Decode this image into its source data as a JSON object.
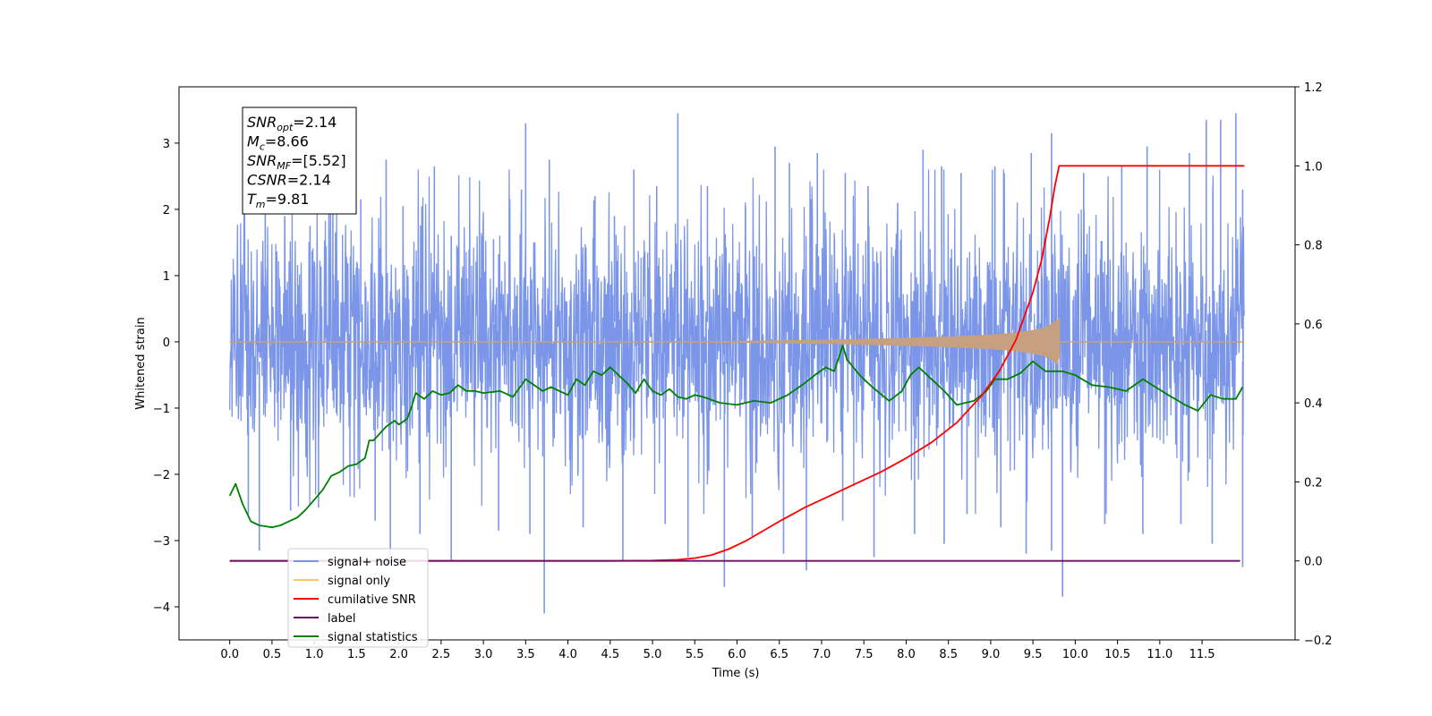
{
  "chart_data": {
    "type": "line",
    "title": "",
    "xlabel": "Time (s)",
    "ylabel_left": "Whitened strain",
    "ylabel_right": "",
    "xlim": [
      -0.6,
      12.6
    ],
    "ylim_left": [
      -4.5,
      3.85
    ],
    "ylim_right": [
      -0.2,
      1.2
    ],
    "xticks": [
      "0.0",
      "0.5",
      "1.0",
      "1.5",
      "2.0",
      "2.5",
      "3.0",
      "3.5",
      "4.0",
      "4.5",
      "5.0",
      "5.5",
      "6.0",
      "6.5",
      "7.0",
      "7.5",
      "8.0",
      "8.5",
      "9.0",
      "9.5",
      "10.0",
      "10.5",
      "11.0",
      "11.5"
    ],
    "yticks_left": [
      "3",
      "2",
      "1",
      "0",
      "−1",
      "−2",
      "−3",
      "−4"
    ],
    "yticks_right": [
      "1.2",
      "1.0",
      "0.8",
      "0.6",
      "0.4",
      "0.2",
      "0.0",
      "−0.2"
    ],
    "grid": false,
    "legend_position": "lower-left",
    "series": [
      {
        "name": "signal+ noise",
        "axis": "left",
        "color": "#7b96e8",
        "spikes": [
          [
            0.42,
            3.05
          ],
          [
            0.65,
            1.9
          ],
          [
            0.95,
            1.75
          ],
          [
            1.22,
            2.05
          ],
          [
            1.55,
            2.15
          ],
          [
            1.85,
            2.75
          ],
          [
            2.05,
            2.05
          ],
          [
            2.42,
            2.65
          ],
          [
            2.62,
            1.6
          ],
          [
            3.12,
            1.55
          ],
          [
            3.45,
            2.3
          ],
          [
            3.5,
            3.3
          ],
          [
            3.78,
            2.75
          ],
          [
            4.32,
            2.2
          ],
          [
            4.55,
            1.9
          ],
          [
            4.78,
            2.6
          ],
          [
            5.05,
            2.35
          ],
          [
            5.3,
            3.45
          ],
          [
            5.65,
            2.35
          ],
          [
            6.1,
            2.05
          ],
          [
            6.45,
            2.95
          ],
          [
            6.62,
            2.7
          ],
          [
            6.95,
            2.85
          ],
          [
            7.28,
            2.55
          ],
          [
            7.55,
            2.35
          ],
          [
            7.9,
            2.1
          ],
          [
            8.2,
            2.9
          ],
          [
            8.42,
            2.65
          ],
          [
            8.65,
            2.55
          ],
          [
            9.05,
            2.65
          ],
          [
            9.48,
            2.85
          ],
          [
            9.72,
            3.15
          ],
          [
            10.1,
            2.55
          ],
          [
            10.55,
            2.65
          ],
          [
            10.85,
            2.95
          ],
          [
            11.35,
            2.85
          ],
          [
            11.55,
            3.35
          ],
          [
            11.72,
            3.35
          ],
          [
            11.9,
            3.45
          ],
          [
            11.98,
            2.3
          ]
        ],
        "dips": [
          [
            0.22,
            -2.6
          ],
          [
            0.35,
            -3.15
          ],
          [
            0.72,
            -2.55
          ],
          [
            1.05,
            -2.5
          ],
          [
            1.72,
            -2.7
          ],
          [
            1.9,
            -3.35
          ],
          [
            2.25,
            -2.9
          ],
          [
            2.62,
            -3.3
          ],
          [
            3.18,
            -2.85
          ],
          [
            3.55,
            -2.9
          ],
          [
            3.72,
            -4.1
          ],
          [
            4.18,
            -2.8
          ],
          [
            4.65,
            -3.3
          ],
          [
            5.15,
            -2.75
          ],
          [
            5.42,
            -3.25
          ],
          [
            5.85,
            -3.7
          ],
          [
            6.18,
            -2.95
          ],
          [
            6.55,
            -3.2
          ],
          [
            6.82,
            -3.45
          ],
          [
            7.25,
            -2.7
          ],
          [
            7.62,
            -3.25
          ],
          [
            8.1,
            -2.9
          ],
          [
            8.45,
            -3.05
          ],
          [
            8.72,
            -2.6
          ],
          [
            9.12,
            -2.8
          ],
          [
            9.42,
            -3.2
          ],
          [
            9.72,
            -3.15
          ],
          [
            9.85,
            -3.85
          ],
          [
            10.35,
            -2.75
          ],
          [
            10.8,
            -2.9
          ],
          [
            11.25,
            -2.75
          ],
          [
            11.62,
            -3.05
          ],
          [
            11.98,
            -3.4
          ]
        ]
      },
      {
        "name": "signal only",
        "axis": "left",
        "color": "#c6a080",
        "envelope": [
          [
            0.0,
            0.0
          ],
          [
            5.0,
            0.005
          ],
          [
            6.0,
            0.015
          ],
          [
            7.0,
            0.03
          ],
          [
            8.0,
            0.06
          ],
          [
            8.5,
            0.08
          ],
          [
            9.0,
            0.11
          ],
          [
            9.3,
            0.14
          ],
          [
            9.5,
            0.18
          ],
          [
            9.65,
            0.22
          ],
          [
            9.75,
            0.3
          ],
          [
            9.8,
            0.35
          ]
        ],
        "chirp_end": 9.81
      },
      {
        "name": "cumilative SNR",
        "axis": "right",
        "color": "#ff0000",
        "x": [
          0,
          4.5,
          5.0,
          5.3,
          5.5,
          5.7,
          5.9,
          6.1,
          6.3,
          6.5,
          6.8,
          7.1,
          7.4,
          7.7,
          8.0,
          8.3,
          8.6,
          8.9,
          9.1,
          9.3,
          9.5,
          9.6,
          9.7,
          9.76,
          9.81,
          12.0
        ],
        "y": [
          0,
          0,
          0.001,
          0.003,
          0.007,
          0.015,
          0.03,
          0.05,
          0.075,
          0.1,
          0.135,
          0.165,
          0.195,
          0.225,
          0.26,
          0.3,
          0.35,
          0.42,
          0.48,
          0.56,
          0.68,
          0.76,
          0.87,
          0.95,
          1.0,
          1.0
        ]
      },
      {
        "name": "label",
        "axis": "right",
        "color": "#6b0f6b",
        "x": [
          0,
          11.95
        ],
        "y": [
          0,
          0
        ]
      },
      {
        "name": "signal statistics",
        "axis": "right",
        "color": "#008000",
        "x": [
          0.0,
          0.07,
          0.15,
          0.25,
          0.35,
          0.5,
          0.6,
          0.7,
          0.8,
          0.9,
          1.0,
          1.1,
          1.2,
          1.3,
          1.4,
          1.5,
          1.6,
          1.65,
          1.7,
          1.85,
          1.95,
          2.0,
          2.1,
          2.15,
          2.2,
          2.3,
          2.4,
          2.5,
          2.6,
          2.7,
          2.8,
          2.9,
          3.0,
          3.2,
          3.35,
          3.5,
          3.6,
          3.7,
          3.8,
          4.0,
          4.1,
          4.2,
          4.3,
          4.4,
          4.5,
          4.7,
          4.8,
          4.9,
          5.0,
          5.1,
          5.2,
          5.3,
          5.4,
          5.5,
          5.6,
          5.8,
          6.0,
          6.2,
          6.4,
          6.6,
          6.8,
          6.95,
          7.05,
          7.15,
          7.25,
          7.3,
          7.45,
          7.6,
          7.8,
          7.95,
          8.05,
          8.15,
          8.3,
          8.45,
          8.6,
          8.8,
          8.95,
          9.05,
          9.2,
          9.35,
          9.5,
          9.65,
          9.85,
          10.0,
          10.2,
          10.4,
          10.6,
          10.8,
          10.95,
          11.1,
          11.3,
          11.45,
          11.6,
          11.75,
          11.9,
          11.98
        ],
        "y": [
          0.165,
          0.195,
          0.145,
          0.1,
          0.09,
          0.085,
          0.09,
          0.1,
          0.11,
          0.13,
          0.155,
          0.18,
          0.215,
          0.225,
          0.24,
          0.245,
          0.26,
          0.305,
          0.305,
          0.34,
          0.355,
          0.345,
          0.36,
          0.39,
          0.425,
          0.41,
          0.43,
          0.42,
          0.425,
          0.445,
          0.43,
          0.43,
          0.425,
          0.43,
          0.415,
          0.46,
          0.445,
          0.43,
          0.44,
          0.42,
          0.46,
          0.445,
          0.48,
          0.47,
          0.49,
          0.45,
          0.425,
          0.46,
          0.43,
          0.42,
          0.435,
          0.415,
          0.41,
          0.42,
          0.415,
          0.4,
          0.395,
          0.405,
          0.4,
          0.42,
          0.45,
          0.475,
          0.49,
          0.48,
          0.545,
          0.51,
          0.47,
          0.44,
          0.405,
          0.43,
          0.47,
          0.49,
          0.46,
          0.43,
          0.395,
          0.405,
          0.43,
          0.46,
          0.46,
          0.475,
          0.505,
          0.48,
          0.48,
          0.47,
          0.445,
          0.44,
          0.43,
          0.46,
          0.44,
          0.42,
          0.395,
          0.38,
          0.42,
          0.41,
          0.41,
          0.44
        ]
      }
    ],
    "legend": {
      "entries": [
        {
          "label": "signal+ noise",
          "color": "#7b96e8"
        },
        {
          "label": "signal only",
          "color": "#ffc56b"
        },
        {
          "label": "cumilative SNR",
          "color": "#ff0000"
        },
        {
          "label": "label",
          "color": "#6b0f6b"
        },
        {
          "label": "signal statistics",
          "color": "#008000"
        }
      ]
    },
    "annotation_box": {
      "lines": [
        {
          "base": "SNR",
          "sub": "opt",
          "value": "=2.14"
        },
        {
          "base": "M",
          "sub": "c",
          "value": "=8.66"
        },
        {
          "base": "SNR",
          "sub": "MF",
          "value": "=[5.52]"
        },
        {
          "base": "CSNR",
          "sub": "",
          "value": "=2.14"
        },
        {
          "base": "T",
          "sub": "m",
          "value": "=9.81"
        }
      ]
    }
  }
}
